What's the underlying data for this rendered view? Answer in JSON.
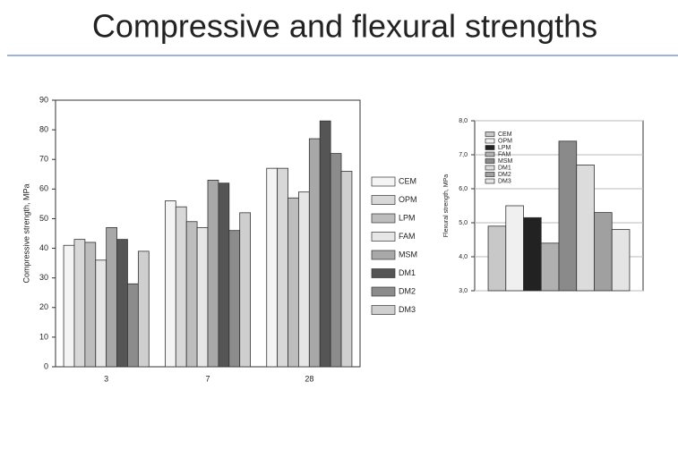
{
  "title": "Compressive and flexural strengths",
  "chart_data": [
    {
      "type": "bar",
      "ylabel": "Compressive strength, MPa",
      "categories": [
        "3",
        "7",
        "28"
      ],
      "ylim": [
        0,
        90
      ],
      "yticks": [
        0,
        10,
        20,
        30,
        40,
        50,
        60,
        70,
        80,
        90
      ],
      "grid": false,
      "legend": "right",
      "series": [
        {
          "name": "CEM",
          "color": "#f4f4f4",
          "values": [
            41,
            56,
            67
          ]
        },
        {
          "name": "OPM",
          "color": "#d8d8d8",
          "values": [
            43,
            54,
            67
          ]
        },
        {
          "name": "LPM",
          "color": "#bdbdbd",
          "values": [
            42,
            49,
            57
          ]
        },
        {
          "name": "FAM",
          "color": "#e6e6e6",
          "values": [
            36,
            47,
            59
          ]
        },
        {
          "name": "MSM",
          "color": "#a8a8a8",
          "values": [
            47,
            63,
            77
          ]
        },
        {
          "name": "DM1",
          "color": "#555555",
          "values": [
            43,
            62,
            83
          ]
        },
        {
          "name": "DM2",
          "color": "#8c8c8c",
          "values": [
            28,
            46,
            72
          ]
        },
        {
          "name": "DM3",
          "color": "#cfcfcf",
          "values": [
            39,
            52,
            66
          ]
        }
      ]
    },
    {
      "type": "bar",
      "ylabel": "Flexural strength, MPa",
      "categories": [
        null
      ],
      "ylim": [
        3,
        8
      ],
      "yticks": [
        {
          "value": 3,
          "label": "3,0"
        },
        {
          "value": 4,
          "label": "4,0"
        },
        {
          "value": 5,
          "label": "5,0"
        },
        {
          "value": 6,
          "label": "6,0"
        },
        {
          "value": 7,
          "label": "7,0"
        },
        {
          "value": 8,
          "label": "8,0"
        }
      ],
      "grid": true,
      "legend": "upper left",
      "series": [
        {
          "name": "CEM",
          "color": "#c8c8c8",
          "values": [
            4.9
          ]
        },
        {
          "name": "OPM",
          "color": "#f0f0f0",
          "values": [
            5.5
          ]
        },
        {
          "name": "LPM",
          "color": "#222222",
          "values": [
            5.15
          ]
        },
        {
          "name": "FAM",
          "color": "#b0b0b0",
          "values": [
            4.4
          ]
        },
        {
          "name": "MSM",
          "color": "#8a8a8a",
          "values": [
            7.4
          ]
        },
        {
          "name": "DM1",
          "color": "#dcdcdc",
          "values": [
            6.7
          ]
        },
        {
          "name": "DM2",
          "color": "#a0a0a0",
          "values": [
            5.3
          ]
        },
        {
          "name": "DM3",
          "color": "#e4e4e4",
          "values": [
            4.8
          ]
        }
      ]
    }
  ]
}
